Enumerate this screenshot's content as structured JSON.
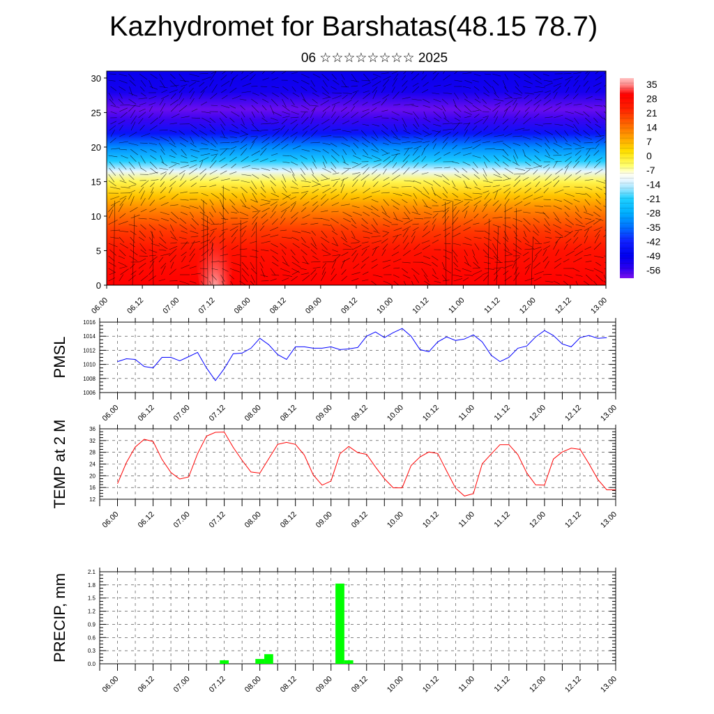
{
  "header": {
    "title": "Kazhydromet for Barshatas(48.15 78.7)",
    "subtitle": "06 ☆☆☆☆☆☆☆☆ 2025"
  },
  "chart_data": [
    {
      "type": "heatmap",
      "title": "",
      "xlabel": "",
      "ylabel": "",
      "x_tick_labels": [
        "06.00",
        "06.12",
        "07.00",
        "07.12",
        "08.00",
        "08.12",
        "09.00",
        "09.12",
        "10.00",
        "10.12",
        "11.00",
        "11.12",
        "12.00",
        "12.12",
        "13.00"
      ],
      "y_ticks": [
        0,
        5,
        10,
        15,
        20,
        25,
        30
      ],
      "ylim": [
        0,
        31
      ],
      "colorbar_labels": [
        "35",
        "28",
        "21",
        "14",
        "7",
        "0",
        "-7",
        "-14",
        "-21",
        "-28",
        "-35",
        "-42",
        "-49",
        "-56"
      ],
      "colorbar_range": [
        -60,
        38
      ],
      "temperature_profile": [
        {
          "level": 0,
          "value": 30
        },
        {
          "level": 5,
          "value": 26
        },
        {
          "level": 8,
          "value": 20
        },
        {
          "level": 11,
          "value": 12
        },
        {
          "level": 13,
          "value": 5
        },
        {
          "level": 15,
          "value": -3
        },
        {
          "level": 16.5,
          "value": -12
        },
        {
          "level": 18,
          "value": -22
        },
        {
          "level": 20,
          "value": -32
        },
        {
          "level": 22,
          "value": -45
        },
        {
          "level": 24,
          "value": -56
        },
        {
          "level": 25.5,
          "value": -59
        },
        {
          "level": 28,
          "value": -52
        },
        {
          "level": 31,
          "value": -50
        }
      ],
      "overlay": "wind streamlines / vectors",
      "colors": {
        "warm": "#ff0000",
        "hot_spot": "#ffb0b0",
        "yellow": "#ffff60",
        "cyan": "#00c8ff",
        "blue": "#0000ee",
        "violet": "#7a10ee"
      }
    },
    {
      "type": "line",
      "ylabel": "PMSL",
      "ylim": [
        1006,
        1016
      ],
      "y_ticks": [
        "1006",
        "1008",
        "1010",
        "1012",
        "1014",
        "1016"
      ],
      "x_tick_labels": [
        "06.00",
        "06.12",
        "07.00",
        "07.12",
        "08.00",
        "08.12",
        "09.00",
        "09.12",
        "10.00",
        "10.12",
        "11.00",
        "11.12",
        "12.00",
        "12.12",
        "13.00"
      ],
      "x_start_hours": 0,
      "x_step_hours": 3,
      "x_range_hours": [
        -6,
        168
      ],
      "color": "#0000ff",
      "values": [
        1010.4,
        1010.8,
        1010.7,
        1009.7,
        1009.5,
        1011.0,
        1011.0,
        1010.5,
        1011.1,
        1011.7,
        1009.5,
        1007.7,
        1009.4,
        1011.5,
        1011.6,
        1012.3,
        1013.7,
        1012.8,
        1011.4,
        1010.7,
        1012.5,
        1012.5,
        1012.3,
        1012.3,
        1012.5,
        1012.1,
        1012.2,
        1012.4,
        1014.0,
        1014.6,
        1013.8,
        1014.5,
        1015.1,
        1014.0,
        1012.1,
        1011.8,
        1013.2,
        1013.9,
        1013.4,
        1013.6,
        1014.2,
        1013.2,
        1011.3,
        1010.4,
        1011.0,
        1012.3,
        1012.6,
        1013.9,
        1014.8,
        1014.1,
        1012.9,
        1012.5,
        1013.8,
        1014.1,
        1013.7,
        1013.8
      ]
    },
    {
      "type": "line",
      "ylabel": "TEMP at 2 M",
      "ylim": [
        12,
        36
      ],
      "y_ticks": [
        "12",
        "16",
        "20",
        "24",
        "28",
        "32",
        "36"
      ],
      "x_tick_labels": [
        "06.00",
        "06.12",
        "07.00",
        "07.12",
        "08.00",
        "08.12",
        "09.00",
        "09.12",
        "10.00",
        "10.12",
        "11.00",
        "11.12",
        "12.00",
        "12.12",
        "13.00"
      ],
      "x_start_hours": 0,
      "x_step_hours": 3,
      "x_range_hours": [
        -6,
        168
      ],
      "color": "#ff0000",
      "values": [
        17.3,
        24.5,
        29.8,
        32.4,
        31.7,
        25.6,
        21.1,
        18.9,
        19.6,
        27.5,
        33.5,
        34.8,
        34.9,
        29.7,
        25.3,
        21.3,
        20.9,
        25.8,
        30.7,
        31.4,
        30.7,
        27.1,
        20.3,
        16.8,
        18.2,
        27.5,
        30.0,
        27.9,
        27.3,
        23.0,
        19.0,
        15.9,
        15.9,
        23.5,
        26.4,
        28.1,
        27.6,
        21.6,
        15.8,
        13.1,
        13.9,
        24.1,
        27.4,
        30.6,
        30.6,
        27.2,
        21.0,
        16.9,
        16.8,
        25.7,
        28.1,
        29.4,
        29.0,
        24.1,
        18.7,
        15.2,
        15.2
      ]
    },
    {
      "type": "bar",
      "ylabel": "PRECIP, mm",
      "ylim": [
        0,
        2.1
      ],
      "y_ticks": [
        "0.0",
        "0.3",
        "0.6",
        "0.9",
        "1.2",
        "1.5",
        "1.8",
        "2.1"
      ],
      "x_tick_labels": [
        "06.00",
        "06.12",
        "07.00",
        "07.12",
        "08.00",
        "08.12",
        "09.00",
        "09.12",
        "10.00",
        "10.12",
        "11.00",
        "11.12",
        "12.00",
        "12.12",
        "13.00"
      ],
      "x_range_hours": [
        -6,
        168
      ],
      "color": "#00ff00",
      "bars": [
        {
          "hour": 36,
          "value": 0.08
        },
        {
          "hour": 48,
          "value": 0.11
        },
        {
          "hour": 51,
          "value": 0.22
        },
        {
          "hour": 75,
          "value": 1.83
        },
        {
          "hour": 78,
          "value": 0.08
        }
      ]
    }
  ]
}
